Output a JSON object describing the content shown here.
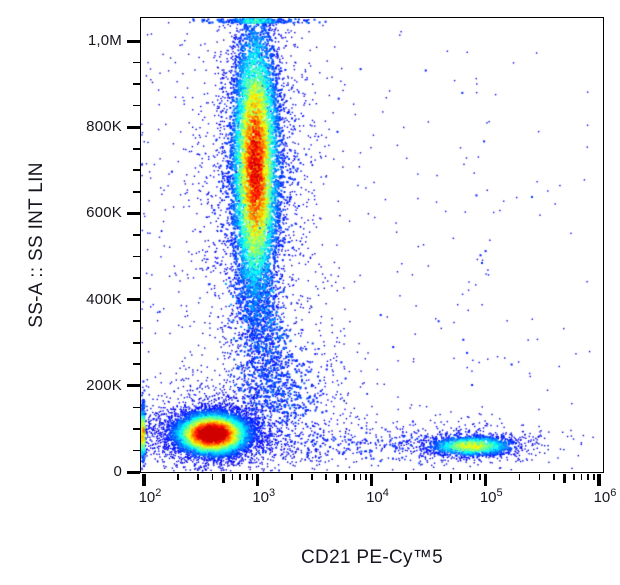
{
  "figure": {
    "background_color": "#ffffff",
    "axis_color": "#000000",
    "text_color": "#16161f"
  },
  "chart_data": {
    "type": "scatter",
    "subtype": "flow-cytometry-pseudocolor-density-dot-plot",
    "title": "",
    "xlabel": "CD21 PE-Cy™5",
    "ylabel": "SS-A :: SS INT LIN",
    "x_scale": "log",
    "x_range_log10": [
      1.97,
      6.05
    ],
    "y_scale": "linear",
    "y_range": [
      0,
      1056000
    ],
    "grid": false,
    "legend": "none",
    "colormap": "jet",
    "x_major_ticks": [
      {
        "base": "10",
        "exp": "2"
      },
      {
        "base": "10",
        "exp": "3"
      },
      {
        "base": "10",
        "exp": "4"
      },
      {
        "base": "10",
        "exp": "5"
      },
      {
        "base": "10",
        "exp": "6"
      }
    ],
    "x_minor_multiples": [
      2,
      3,
      4,
      6,
      7,
      8,
      9
    ],
    "x_medium_multiple": 5,
    "y_major_ticks": [
      {
        "value": 0,
        "label": "0"
      },
      {
        "value": 200000,
        "label": "200K"
      },
      {
        "value": 400000,
        "label": "400K"
      },
      {
        "value": 600000,
        "label": "600K"
      },
      {
        "value": 800000,
        "label": "800K"
      },
      {
        "value": 1000000,
        "label": "1,0M"
      }
    ],
    "y_minor_step": 50000,
    "populations": [
      {
        "name": "high-ssc-granulocyte-monocyte-core",
        "dist": "gauss",
        "n": 7200,
        "cx_log10": 2.98,
        "sx_log10": 0.115,
        "cy": 710000,
        "sy": 180000,
        "peak": 0.8,
        "pile_top": true
      },
      {
        "name": "high-ssc-halo",
        "dist": "gauss",
        "n": 1700,
        "cx_log10": 2.99,
        "sx_log10": 0.3,
        "cy": 700000,
        "sy": 235000,
        "peak": 0.16,
        "pile_top": true
      },
      {
        "name": "ssc-descending-tail",
        "dist": "tail",
        "n": 950,
        "x0_log10": 2.97,
        "drift_log10": 0.17,
        "xnoise_log10": 0.1,
        "y0": 445000,
        "yspan": 300000,
        "ynoise": 25000,
        "peak": 0.24
      },
      {
        "name": "debris-fan",
        "dist": "gauss",
        "n": 620,
        "cx_log10": 3.22,
        "sx_log10": 0.36,
        "cy": 175000,
        "sy": 95000,
        "peak": 0.13
      },
      {
        "name": "lymphocyte-core",
        "dist": "gauss",
        "n": 5400,
        "cx_log10": 2.6,
        "sx_log10": 0.18,
        "cy": 88000,
        "sy": 27000,
        "peak": 0.97,
        "pile_left": true
      },
      {
        "name": "lymphocyte-halo",
        "dist": "gauss",
        "n": 1600,
        "cx_log10": 2.63,
        "sx_log10": 0.4,
        "cy": 95000,
        "sy": 55000,
        "peak": 0.13,
        "pile_left": true
      },
      {
        "name": "offscale-low-pileup",
        "dist": "gauss",
        "n": 450,
        "cx_log10": 1.88,
        "sx_log10": 0.1,
        "cy": 90000,
        "sy": 30000,
        "peak": 0.22,
        "pile_left": true
      },
      {
        "name": "cd21-bright-core",
        "dist": "gauss",
        "n": 1100,
        "cx_log10": 4.88,
        "sx_log10": 0.21,
        "cy": 60000,
        "sy": 13500,
        "peak": 0.52
      },
      {
        "name": "cd21-bright-halo",
        "dist": "gauss",
        "n": 430,
        "cx_log10": 4.85,
        "sx_log10": 0.4,
        "cy": 66000,
        "sy": 27000,
        "peak": 0.12
      },
      {
        "name": "low-ssc-bridge",
        "dist": "unix",
        "n": 240,
        "xmin_log10": 3.0,
        "xmax_log10": 4.5,
        "cy": 62000,
        "sy": 20000,
        "peak": 0.1
      },
      {
        "name": "cd21-vertical-trail",
        "dist": "trail",
        "n": 32,
        "cx_log10": 4.93,
        "sx_log10": 0.09,
        "ymin": 90000,
        "ymax": 1010000,
        "peak": 0.08
      },
      {
        "name": "sparse-background",
        "dist": "bg",
        "n": 340,
        "xmin_log10": 1.98,
        "xmax_log10": 5.92,
        "xskew": 1.7,
        "ymin": 3000,
        "ymax": 1045000,
        "peak": 0.07
      }
    ]
  }
}
